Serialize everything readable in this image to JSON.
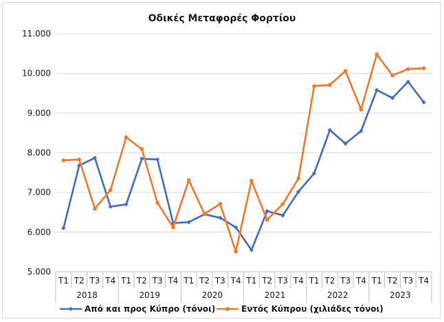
{
  "colors": {
    "series1": "#4472c4",
    "series2": "#ed7d31",
    "grid": "#d9d9d9",
    "axis": "#bfbfbf"
  },
  "chart_data": {
    "type": "line",
    "title": "Οδικές Μεταφορές Φορτίου",
    "xlabel": "",
    "ylabel": "",
    "ylim": [
      5000,
      11000
    ],
    "yticks": [
      "5.000",
      "6.000",
      "7.000",
      "8.000",
      "9.000",
      "10.000",
      "11.000"
    ],
    "ytick_values": [
      5000,
      6000,
      7000,
      8000,
      9000,
      10000,
      11000
    ],
    "grid": true,
    "legend_position": "bottom",
    "quarters": [
      "T1",
      "T2",
      "T3",
      "T4",
      "T1",
      "T2",
      "T3",
      "T4",
      "T1",
      "T2",
      "T3",
      "T4",
      "T1",
      "T2",
      "T3",
      "T4",
      "T1",
      "T2",
      "T3",
      "T4",
      "T1",
      "T2",
      "T3",
      "T4"
    ],
    "years": [
      "2018",
      "2019",
      "2020",
      "2021",
      "2022",
      "2023"
    ],
    "series": [
      {
        "name": "Από και προς Κύπρο (τόνοι)",
        "values": [
          6100,
          7680,
          7870,
          6640,
          6700,
          7850,
          7830,
          6230,
          6250,
          6450,
          6360,
          6120,
          5550,
          6530,
          6420,
          7020,
          7480,
          8570,
          8230,
          8550,
          9580,
          9380,
          9790,
          9270
        ]
      },
      {
        "name": "Εντός Κύπρου (χιλιάδες τόνοι)",
        "values": [
          7810,
          7830,
          6590,
          7060,
          8390,
          8090,
          6740,
          6120,
          7310,
          6460,
          6710,
          5510,
          7290,
          6310,
          6710,
          7350,
          9680,
          9710,
          10060,
          9090,
          10480,
          9950,
          10110,
          10130
        ]
      }
    ]
  }
}
